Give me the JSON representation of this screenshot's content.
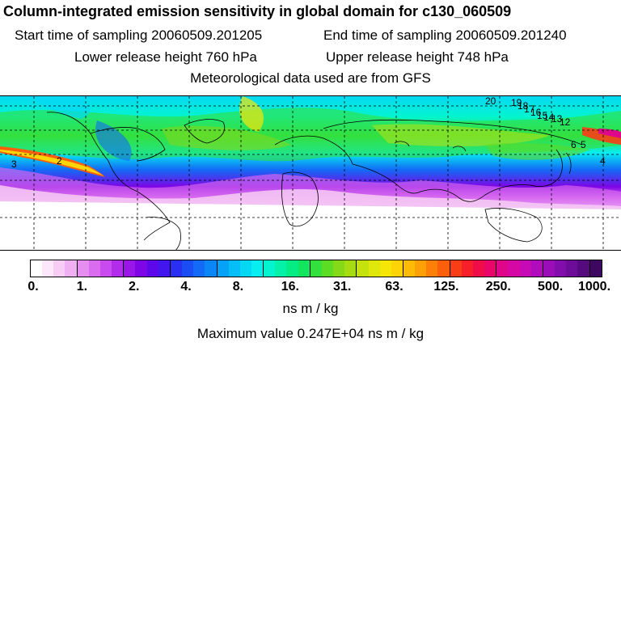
{
  "header": {
    "title": "Column-integrated emission sensitivity in global domain for c130_060509",
    "start_label": "Start time of sampling 20060509.201205",
    "end_label": "End time of sampling 20060509.201240",
    "lower_label": "Lower release height  760 hPa",
    "upper_label": "Upper release height  748 hPa",
    "met_label": "Meteorological data used are from GFS"
  },
  "map": {
    "contour_labels": [
      "3",
      "2",
      "20",
      "19",
      "18",
      "17",
      "16",
      "15",
      "14",
      "13",
      "12",
      "6",
      "5",
      "4"
    ],
    "palette": {
      "ocean": "#ffffff",
      "coastline": "#000000",
      "grid": "#000000"
    }
  },
  "colorbar": {
    "tick_labels": [
      "0.",
      "1.",
      "2.",
      "4.",
      "8.",
      "16.",
      "31.",
      "63.",
      "125.",
      "250.",
      "500.",
      "1000."
    ],
    "colors": [
      "#ffffff",
      "#fde8fb",
      "#f7ccf5",
      "#efb0f2",
      "#e68eef",
      "#d96cef",
      "#c94aee",
      "#b22deb",
      "#9a15e8",
      "#7e05e6",
      "#5d08ea",
      "#4316ef",
      "#2b2ff2",
      "#1b4df5",
      "#136af6",
      "#0b86f7",
      "#06a2f8",
      "#05bef7",
      "#06d8f4",
      "#06eef0",
      "#04f4d0",
      "#03f1a9",
      "#04ec83",
      "#11e65e",
      "#34e03d",
      "#5cdc23",
      "#86d918",
      "#a8dc12",
      "#c6e20d",
      "#e0e70a",
      "#f5e607",
      "#fdd506",
      "#fdbb06",
      "#fd9f06",
      "#fc8007",
      "#fb5f0c",
      "#f93d17",
      "#f61f2a",
      "#f00c48",
      "#e9056a",
      "#e0068a",
      "#d508a4",
      "#c50ab6",
      "#b00cbc",
      "#9a0db8",
      "#820dab",
      "#6c0c98",
      "#550a7d",
      "#3f0860"
    ],
    "units": "ns m / kg"
  },
  "footer": {
    "max_value": "Maximum value  0.247E+04 ns m / kg"
  }
}
